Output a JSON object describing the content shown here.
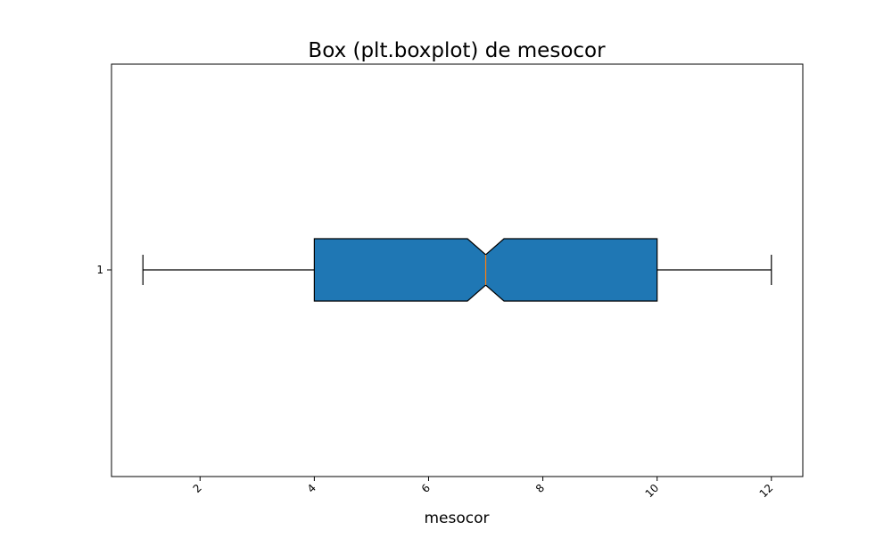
{
  "chart_data": {
    "type": "box",
    "orientation": "horizontal",
    "notched": true,
    "title": "Box (plt.boxplot) de mesocor",
    "xlabel": "mesocor",
    "ylabel": "",
    "xlim": [
      0.45,
      12.55
    ],
    "xticks": [
      2,
      4,
      6,
      8,
      10,
      12
    ],
    "xtick_labels": [
      "2",
      "4",
      "6",
      "8",
      "10",
      "12"
    ],
    "xtick_rotation": -45,
    "ytick_labels": [
      "1"
    ],
    "grid": false,
    "box": {
      "whisker_low": 1,
      "q1": 4,
      "median": 7,
      "q3": 10,
      "whisker_high": 12,
      "notch_low": 6.68,
      "notch_high": 7.32
    },
    "colors": {
      "box_fill": "#1f77b4",
      "median_line": "#ff7f0e",
      "outline": "#000000"
    }
  }
}
